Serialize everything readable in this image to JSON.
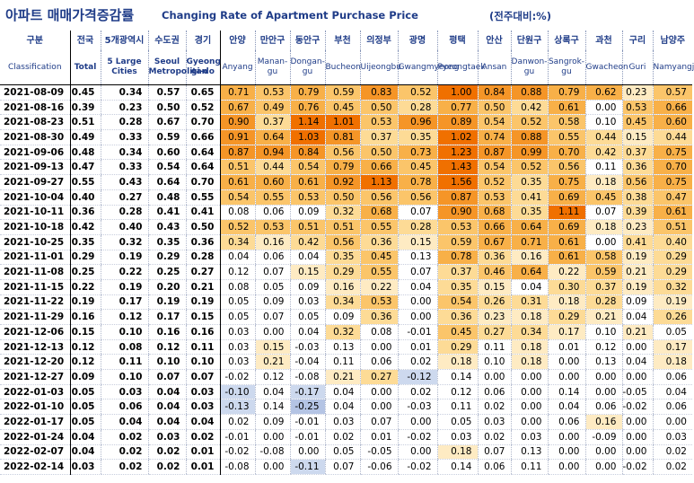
{
  "title": {
    "korean": "아파트 매매가격증감률",
    "english": "Changing Rate of Apartment Purchase Price",
    "unit": "(전주대비:%)"
  },
  "columns": [
    {
      "ko": "구분",
      "en": "Classification"
    },
    {
      "ko": "전국",
      "en": "Total"
    },
    {
      "ko": "5개광역시",
      "en": "5 Large Cities"
    },
    {
      "ko": "수도권",
      "en": "Seoul Metropolitan"
    },
    {
      "ko": "경기",
      "en": "Gyeong gi-do"
    },
    {
      "ko": "안양",
      "en": "Anyang"
    },
    {
      "ko": "만안구",
      "en": "Manan-gu"
    },
    {
      "ko": "동안구",
      "en": "Dongan-gu"
    },
    {
      "ko": "부천",
      "en": "Bucheon"
    },
    {
      "ko": "의정부",
      "en": "Uijeongbu"
    },
    {
      "ko": "광명",
      "en": "Gwangmyeong"
    },
    {
      "ko": "평택",
      "en": "Pyeongtaek"
    },
    {
      "ko": "안산",
      "en": "Ansan"
    },
    {
      "ko": "단원구",
      "en": "Danwon-gu"
    },
    {
      "ko": "상록구",
      "en": "Sangrok-gu"
    },
    {
      "ko": "과천",
      "en": "Gwacheon"
    },
    {
      "ko": "구리",
      "en": "Guri"
    },
    {
      "ko": "남양주",
      "en": "Namyangju"
    }
  ],
  "rows": [
    {
      "date": "2021-08-09",
      "values": [
        "0.45",
        "0.34",
        "0.57",
        "0.65",
        "0.71",
        "0.53",
        "0.79",
        "0.59",
        "0.83",
        "0.52",
        "1.00",
        "0.84",
        "0.88",
        "0.79",
        "0.62",
        "0.23",
        "0.57"
      ]
    },
    {
      "date": "2021-08-16",
      "values": [
        "0.39",
        "0.23",
        "0.50",
        "0.52",
        "0.67",
        "0.49",
        "0.76",
        "0.45",
        "0.50",
        "0.28",
        "0.77",
        "0.50",
        "0.42",
        "0.61",
        "0.00",
        "0.53",
        "0.66"
      ]
    },
    {
      "date": "2021-08-23",
      "values": [
        "0.51",
        "0.28",
        "0.67",
        "0.70",
        "0.90",
        "0.37",
        "1.14",
        "1.01",
        "0.53",
        "0.96",
        "0.89",
        "0.54",
        "0.52",
        "0.58",
        "0.10",
        "0.45",
        "0.60"
      ]
    },
    {
      "date": "2021-08-30",
      "values": [
        "0.49",
        "0.33",
        "0.59",
        "0.66",
        "0.91",
        "0.64",
        "1.03",
        "0.81",
        "0.37",
        "0.35",
        "1.02",
        "0.74",
        "0.88",
        "0.55",
        "0.44",
        "0.15",
        "0.44"
      ]
    },
    {
      "date": "2021-09-06",
      "values": [
        "0.48",
        "0.34",
        "0.60",
        "0.64",
        "0.87",
        "0.94",
        "0.84",
        "0.56",
        "0.50",
        "0.73",
        "1.23",
        "0.87",
        "0.99",
        "0.70",
        "0.42",
        "0.37",
        "0.75"
      ]
    },
    {
      "date": "2021-09-13",
      "values": [
        "0.47",
        "0.33",
        "0.54",
        "0.64",
        "0.51",
        "0.44",
        "0.54",
        "0.79",
        "0.66",
        "0.45",
        "1.43",
        "0.54",
        "0.52",
        "0.56",
        "0.11",
        "0.36",
        "0.70"
      ]
    },
    {
      "date": "2021-09-27",
      "values": [
        "0.55",
        "0.43",
        "0.64",
        "0.70",
        "0.61",
        "0.60",
        "0.61",
        "0.92",
        "1.13",
        "0.78",
        "1.56",
        "0.52",
        "0.35",
        "0.75",
        "0.18",
        "0.56",
        "0.75"
      ]
    },
    {
      "date": "2021-10-04",
      "values": [
        "0.40",
        "0.27",
        "0.48",
        "0.55",
        "0.54",
        "0.55",
        "0.53",
        "0.50",
        "0.56",
        "0.56",
        "0.87",
        "0.53",
        "0.41",
        "0.69",
        "0.45",
        "0.38",
        "0.47"
      ]
    },
    {
      "date": "2021-10-11",
      "values": [
        "0.36",
        "0.28",
        "0.41",
        "0.41",
        "0.08",
        "0.06",
        "0.09",
        "0.32",
        "0.68",
        "0.07",
        "0.90",
        "0.68",
        "0.35",
        "1.11",
        "0.07",
        "0.39",
        "0.61"
      ]
    },
    {
      "date": "2021-10-18",
      "values": [
        "0.42",
        "0.40",
        "0.43",
        "0.50",
        "0.52",
        "0.53",
        "0.51",
        "0.51",
        "0.55",
        "0.28",
        "0.53",
        "0.66",
        "0.64",
        "0.69",
        "0.18",
        "0.23",
        "0.51"
      ]
    },
    {
      "date": "2021-10-25",
      "values": [
        "0.35",
        "0.32",
        "0.35",
        "0.36",
        "0.34",
        "0.16",
        "0.42",
        "0.56",
        "0.36",
        "0.15",
        "0.59",
        "0.67",
        "0.71",
        "0.61",
        "0.00",
        "0.41",
        "0.40"
      ]
    },
    {
      "date": "2021-11-01",
      "values": [
        "0.29",
        "0.19",
        "0.29",
        "0.28",
        "0.04",
        "0.06",
        "0.04",
        "0.35",
        "0.45",
        "0.13",
        "0.78",
        "0.36",
        "0.16",
        "0.61",
        "0.58",
        "0.19",
        "0.29"
      ]
    },
    {
      "date": "2021-11-08",
      "values": [
        "0.25",
        "0.22",
        "0.25",
        "0.27",
        "0.12",
        "0.07",
        "0.15",
        "0.29",
        "0.55",
        "0.07",
        "0.37",
        "0.46",
        "0.64",
        "0.22",
        "0.59",
        "0.21",
        "0.29"
      ]
    },
    {
      "date": "2021-11-15",
      "values": [
        "0.22",
        "0.19",
        "0.20",
        "0.21",
        "0.08",
        "0.05",
        "0.09",
        "0.16",
        "0.22",
        "0.04",
        "0.35",
        "0.15",
        "0.04",
        "0.30",
        "0.37",
        "0.19",
        "0.32"
      ]
    },
    {
      "date": "2021-11-22",
      "values": [
        "0.19",
        "0.17",
        "0.19",
        "0.19",
        "0.05",
        "0.09",
        "0.03",
        "0.34",
        "0.53",
        "0.00",
        "0.54",
        "0.26",
        "0.31",
        "0.18",
        "0.28",
        "0.09",
        "0.19"
      ]
    },
    {
      "date": "2021-11-29",
      "values": [
        "0.16",
        "0.12",
        "0.17",
        "0.15",
        "0.05",
        "0.07",
        "0.05",
        "0.09",
        "0.36",
        "0.00",
        "0.36",
        "0.23",
        "0.18",
        "0.29",
        "0.21",
        "0.04",
        "0.26"
      ]
    },
    {
      "date": "2021-12-06",
      "values": [
        "0.15",
        "0.10",
        "0.16",
        "0.16",
        "0.03",
        "0.00",
        "0.04",
        "0.32",
        "0.08",
        "-0.01",
        "0.45",
        "0.27",
        "0.34",
        "0.17",
        "0.10",
        "0.21",
        "0.05"
      ]
    },
    {
      "date": "2021-12-13",
      "values": [
        "0.12",
        "0.08",
        "0.12",
        "0.11",
        "0.03",
        "0.15",
        "-0.03",
        "0.13",
        "0.00",
        "0.01",
        "0.29",
        "0.11",
        "0.18",
        "0.01",
        "0.12",
        "0.00",
        "0.17"
      ]
    },
    {
      "date": "2021-12-20",
      "values": [
        "0.12",
        "0.11",
        "0.10",
        "0.10",
        "0.03",
        "0.21",
        "-0.04",
        "0.11",
        "0.06",
        "0.02",
        "0.18",
        "0.10",
        "0.18",
        "0.00",
        "0.13",
        "0.04",
        "0.18"
      ]
    },
    {
      "date": "2021-12-27",
      "values": [
        "0.09",
        "0.10",
        "0.07",
        "0.07",
        "-0.02",
        "0.12",
        "-0.08",
        "0.21",
        "0.27",
        "-0.12",
        "0.14",
        "0.00",
        "0.00",
        "0.00",
        "0.00",
        "0.00",
        "0.06"
      ]
    },
    {
      "date": "2022-01-03",
      "values": [
        "0.05",
        "0.03",
        "0.04",
        "0.03",
        "-0.10",
        "0.04",
        "-0.17",
        "0.04",
        "0.00",
        "0.02",
        "0.12",
        "0.06",
        "0.00",
        "0.14",
        "0.00",
        "-0.05",
        "0.04"
      ]
    },
    {
      "date": "2022-01-10",
      "values": [
        "0.05",
        "0.06",
        "0.04",
        "0.03",
        "-0.13",
        "0.14",
        "-0.25",
        "0.04",
        "0.00",
        "-0.03",
        "0.11",
        "0.02",
        "0.00",
        "0.04",
        "0.06",
        "-0.02",
        "0.06"
      ]
    },
    {
      "date": "2022-01-17",
      "values": [
        "0.05",
        "0.04",
        "0.04",
        "0.04",
        "0.02",
        "0.09",
        "-0.01",
        "0.03",
        "0.07",
        "0.00",
        "0.05",
        "0.03",
        "0.00",
        "0.06",
        "0.16",
        "0.00",
        "0.00"
      ]
    },
    {
      "date": "2022-01-24",
      "values": [
        "0.04",
        "0.02",
        "0.03",
        "0.02",
        "-0.01",
        "0.00",
        "-0.01",
        "0.02",
        "0.01",
        "-0.02",
        "0.03",
        "0.02",
        "0.03",
        "0.00",
        "-0.09",
        "0.00",
        "0.03"
      ]
    },
    {
      "date": "2022-02-07",
      "values": [
        "0.04",
        "0.02",
        "0.02",
        "0.01",
        "-0.02",
        "-0.08",
        "0.00",
        "0.05",
        "-0.05",
        "0.00",
        "0.18",
        "0.07",
        "0.13",
        "0.00",
        "0.00",
        "0.00",
        "0.02"
      ]
    },
    {
      "date": "2022-02-14",
      "values": [
        "0.03",
        "0.02",
        "0.02",
        "0.01",
        "-0.08",
        "0.00",
        "-0.11",
        "0.07",
        "-0.06",
        "-0.02",
        "0.14",
        "0.06",
        "0.11",
        "0.00",
        "0.00",
        "-0.02",
        "0.02"
      ]
    }
  ]
}
